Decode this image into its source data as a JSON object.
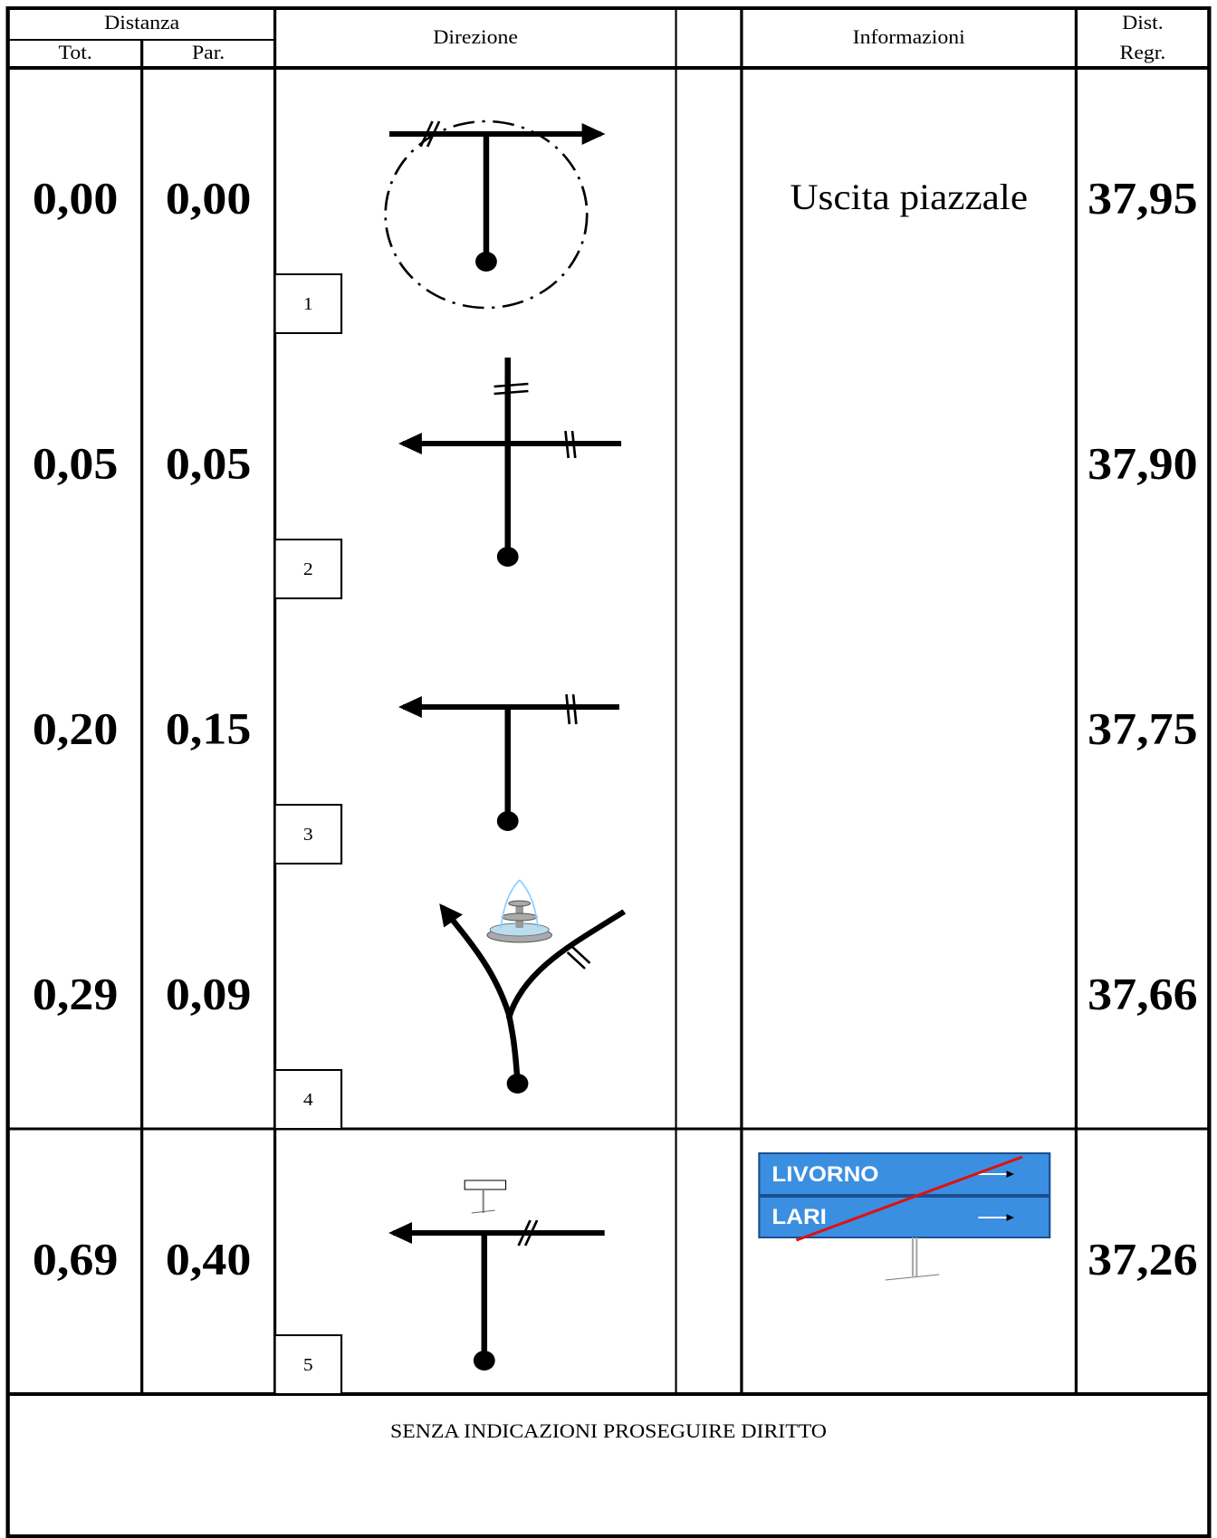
{
  "header": {
    "distanza": "Distanza",
    "tot": "Tot.",
    "par": "Par.",
    "direzione": "Direzione",
    "informazioni": "Informazioni",
    "dist": "Dist.",
    "regr": "Regr."
  },
  "rows": [
    {
      "tot": "0,00",
      "par": "0,00",
      "step": "1",
      "info": "Uscita piazzale",
      "regr": "37,95"
    },
    {
      "tot": "0,05",
      "par": "0,05",
      "step": "2",
      "info": null,
      "regr": "37,90"
    },
    {
      "tot": "0,20",
      "par": "0,15",
      "step": "3",
      "info": null,
      "regr": "37,75"
    },
    {
      "tot": "0,29",
      "par": "0,09",
      "step": "4",
      "info": null,
      "regr": "37,66"
    },
    {
      "tot": "0,69",
      "par": "0,40",
      "step": "5",
      "info": null,
      "regr": "37,26"
    }
  ],
  "sign": {
    "top": "LIVORNO",
    "bottom": "LARI"
  },
  "footer": "SENZA INDICAZIONI PROSEGUIRE DIRITTO"
}
